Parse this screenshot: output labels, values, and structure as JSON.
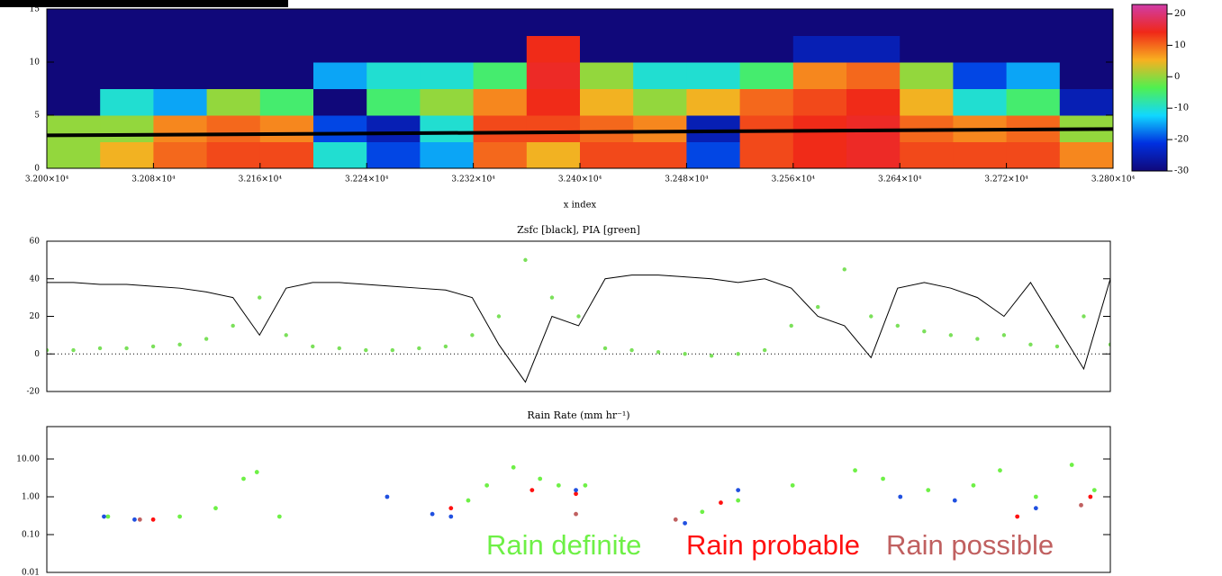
{
  "chart_data": [
    {
      "type": "heatmap",
      "xlabel": "x index",
      "xlim": [
        32000,
        32800
      ],
      "xticks": [
        {
          "value": 32000,
          "label": "3.200×10⁴"
        },
        {
          "value": 32080,
          "label": "3.208×10⁴"
        },
        {
          "value": 32160,
          "label": "3.216×10⁴"
        },
        {
          "value": 32240,
          "label": "3.224×10⁴"
        },
        {
          "value": 32320,
          "label": "3.232×10⁴"
        },
        {
          "value": 32400,
          "label": "3.240×10⁴"
        },
        {
          "value": 32480,
          "label": "3.248×10⁴"
        },
        {
          "value": 32560,
          "label": "3.256×10⁴"
        },
        {
          "value": 32640,
          "label": "3.264×10⁴"
        },
        {
          "value": 32720,
          "label": "3.272×10⁴"
        },
        {
          "value": 32800,
          "label": "3.280×10⁴"
        }
      ],
      "ylim": [
        0,
        15
      ],
      "yticks": [
        0,
        5,
        10,
        15
      ],
      "xbins": [
        32000,
        32040,
        32080,
        32120,
        32160,
        32200,
        32240,
        32280,
        32320,
        32360,
        32400,
        32440,
        32480,
        32520,
        32560,
        32600,
        32640,
        32680,
        32720,
        32760,
        32800
      ],
      "ybins": [
        0,
        2.5,
        5,
        7.5,
        10,
        12.5,
        15
      ],
      "z": [
        [
          0,
          5,
          10,
          12,
          12,
          -10,
          -20,
          -15,
          10,
          5,
          12,
          12,
          -20,
          12,
          14,
          15,
          12,
          12,
          12,
          8
        ],
        [
          0,
          0,
          8,
          10,
          8,
          -20,
          -25,
          -10,
          12,
          12,
          10,
          8,
          -25,
          12,
          14,
          15,
          10,
          8,
          10,
          0
        ],
        [
          -30,
          -10,
          -15,
          0,
          -5,
          -30,
          -5,
          0,
          8,
          14,
          5,
          0,
          5,
          10,
          12,
          14,
          5,
          -10,
          -5,
          -25
        ],
        [
          -30,
          -30,
          -30,
          -30,
          -30,
          -15,
          -10,
          -10,
          -5,
          15,
          0,
          -10,
          -10,
          -5,
          8,
          10,
          0,
          -20,
          -15,
          -30
        ],
        [
          -30,
          -30,
          -30,
          -30,
          -30,
          -30,
          -30,
          -30,
          -30,
          14,
          -30,
          -30,
          -30,
          -30,
          -25,
          -25,
          -30,
          -30,
          -30,
          -30
        ],
        [
          -30,
          -30,
          -30,
          -30,
          -30,
          -30,
          -30,
          -30,
          -30,
          -30,
          -30,
          -30,
          -30,
          -30,
          -30,
          -30,
          -30,
          -30,
          -30,
          -30
        ]
      ],
      "colorscale": [
        "#10087a",
        "#0030e0",
        "#10d8ff",
        "#50f050",
        "#f8b020",
        "#f02818",
        "#d03ca8"
      ],
      "zlim": [
        -30,
        23
      ],
      "zticks": [
        -30,
        -20,
        -10,
        0,
        10,
        20
      ],
      "overlay": {
        "color": "#000000",
        "x": [
          32000,
          32800
        ],
        "values": [
          3.1,
          3.7
        ]
      }
    },
    {
      "type": "line",
      "title": "Zsfc [black], PIA [green]",
      "x": [
        32000,
        32020,
        32040,
        32060,
        32080,
        32100,
        32120,
        32140,
        32160,
        32180,
        32200,
        32220,
        32240,
        32260,
        32280,
        32300,
        32320,
        32340,
        32360,
        32380,
        32400,
        32420,
        32440,
        32460,
        32480,
        32500,
        32520,
        32540,
        32560,
        32580,
        32600,
        32620,
        32640,
        32660,
        32680,
        32700,
        32720,
        32740,
        32760,
        32780,
        32800
      ],
      "xlim": [
        32000,
        32800
      ],
      "ylim": [
        -20,
        60
      ],
      "yticks": [
        -20,
        0,
        20,
        40,
        60
      ],
      "reference_line": 0,
      "series": [
        {
          "color": "#000000",
          "style": "line",
          "values": [
            38,
            38,
            37,
            37,
            36,
            35,
            33,
            30,
            10,
            35,
            38,
            38,
            37,
            36,
            35,
            34,
            30,
            5,
            -15,
            20,
            15,
            40,
            42,
            42,
            41,
            40,
            38,
            40,
            35,
            20,
            15,
            -2,
            35,
            38,
            35,
            30,
            20,
            38,
            15,
            -8,
            40
          ]
        },
        {
          "color": "#7be05a",
          "style": "points",
          "values": [
            2,
            2,
            3,
            3,
            4,
            5,
            8,
            15,
            30,
            10,
            4,
            3,
            2,
            2,
            3,
            4,
            10,
            20,
            50,
            30,
            20,
            3,
            2,
            1,
            0,
            -1,
            0,
            2,
            15,
            25,
            45,
            20,
            15,
            12,
            10,
            8,
            10,
            5,
            4,
            20,
            5
          ]
        }
      ]
    },
    {
      "type": "scatter",
      "title": "Rain Rate (mm hr⁻¹)",
      "log_y": true,
      "xlim": [
        32000,
        32800
      ],
      "ylim": [
        0.01,
        72
      ],
      "yticks": [
        0.01,
        {
          "value": 0.1,
          "label": "0.10"
        },
        {
          "value": 1,
          "label": "1.00"
        },
        {
          "value": 10,
          "label": "10.00"
        }
      ],
      "legend": "lower right",
      "series": [
        {
          "name": "Rain definite",
          "color": "#6ef046",
          "x": [
            32046,
            32100,
            32127,
            32148,
            32158,
            32175,
            32317,
            32331,
            32351,
            32371,
            32385,
            32405,
            32493,
            32520,
            32561,
            32608,
            32629,
            32663,
            32697,
            32717,
            32744,
            32771,
            32788
          ],
          "values": [
            0.3,
            0.3,
            0.5,
            3,
            4.5,
            0.3,
            0.8,
            2,
            6,
            3,
            2,
            2,
            0.4,
            0.8,
            2,
            5,
            3,
            1.5,
            2,
            5,
            1,
            7,
            1.5
          ]
        },
        {
          "name": "Rain probable",
          "color": "#ff1010",
          "x": [
            32080,
            32304,
            32365,
            32398,
            32507,
            32730,
            32785
          ],
          "values": [
            0.25,
            0.5,
            1.5,
            1.2,
            0.7,
            0.3,
            1
          ]
        },
        {
          "name": "Rain possible",
          "color": "#c06060",
          "x": [
            32070,
            32398,
            32473,
            32778
          ],
          "values": [
            0.25,
            0.35,
            0.25,
            0.6
          ]
        },
        {
          "color": "#2050e0",
          "x": [
            32043,
            32066,
            32256,
            32290,
            32304,
            32398,
            32480,
            32520,
            32642,
            32683,
            32744
          ],
          "values": [
            0.3,
            0.25,
            1,
            0.35,
            0.3,
            1.5,
            0.2,
            1.5,
            1,
            0.8,
            0.5
          ]
        }
      ]
    }
  ]
}
